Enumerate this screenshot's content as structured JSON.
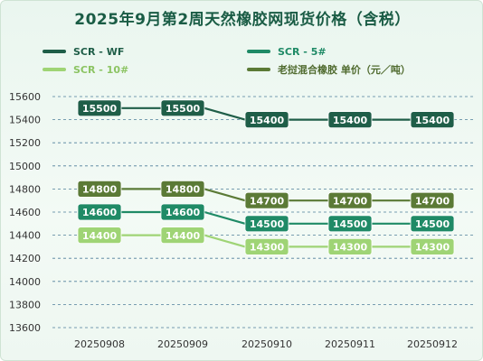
{
  "chart_data": {
    "type": "line",
    "title": "2025年9月第2周天然橡胶网现货价格（含税）",
    "categories": [
      "20250908",
      "20250909",
      "20250910",
      "20250911",
      "20250912"
    ],
    "ylim": [
      13600,
      15600
    ],
    "yticks": [
      15600,
      15400,
      15200,
      15000,
      14800,
      14600,
      14400,
      14200,
      14000,
      13800,
      13600
    ],
    "grid": true,
    "legend_position": "top",
    "series": [
      {
        "name": "SCR - WF",
        "color": "#1f5e48",
        "values": [
          15500,
          15500,
          15400,
          15400,
          15400
        ]
      },
      {
        "name": "老挝混合橡胶 单价（元／吨）",
        "color": "#5b7a36",
        "values": [
          14800,
          14800,
          14700,
          14700,
          14700
        ]
      },
      {
        "name": "SCR - 5#",
        "color": "#1f8a66",
        "values": [
          14600,
          14600,
          14500,
          14500,
          14500
        ]
      },
      {
        "name": "SCR - 10#",
        "color": "#9fd475",
        "values": [
          14400,
          14400,
          14300,
          14300,
          14300
        ]
      }
    ]
  }
}
